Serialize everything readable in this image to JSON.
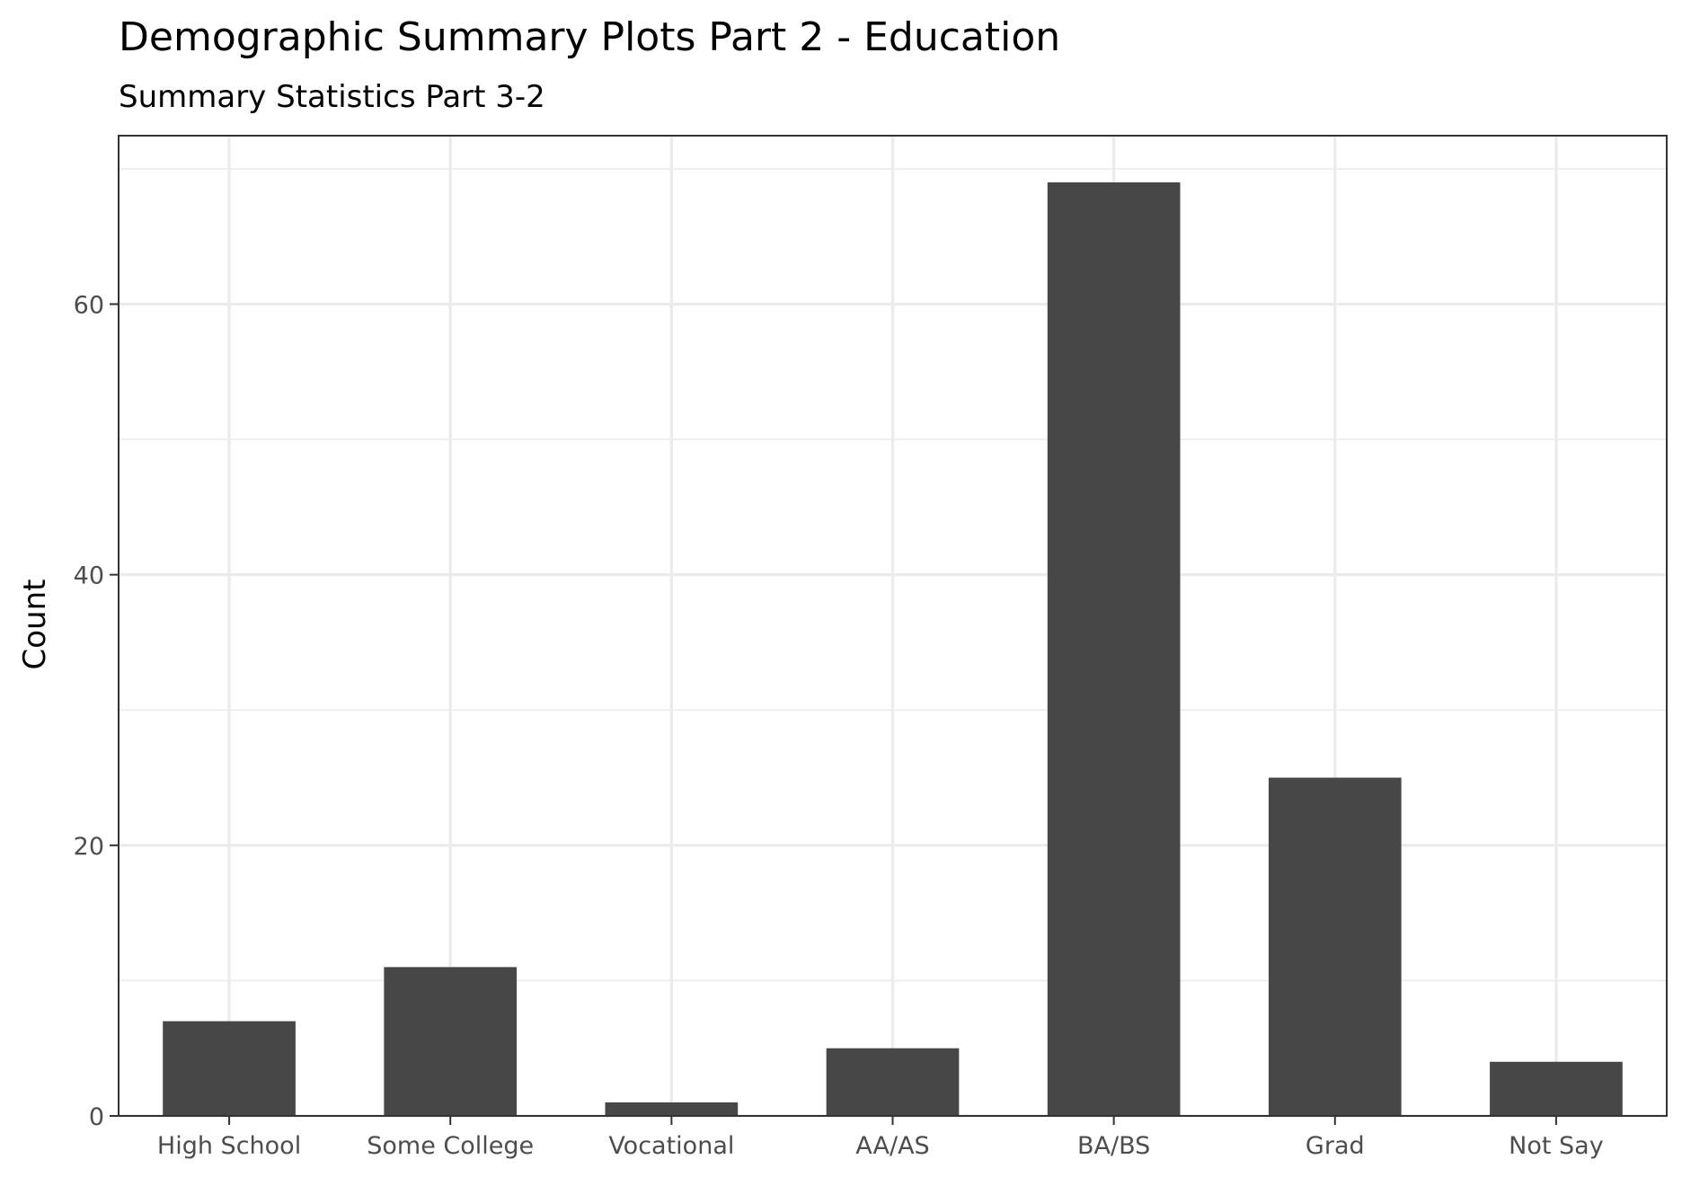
{
  "chart_data": {
    "type": "bar",
    "title": "Demographic Summary Plots Part 2 - Education",
    "subtitle": "Summary Statistics Part 3-2",
    "xlabel": "",
    "ylabel": "Count",
    "categories": [
      "High School",
      "Some College",
      "Vocational",
      "AA/AS",
      "BA/BS",
      "Grad",
      "Not Say"
    ],
    "values": [
      7,
      11,
      1,
      5,
      69,
      25,
      4
    ],
    "ylim": [
      0,
      72.45
    ],
    "y_ticks": [
      0,
      20,
      40,
      60
    ],
    "y_minor_ticks": [
      10,
      30,
      50,
      70
    ],
    "grid": true,
    "legend": "none",
    "colors": {
      "bar": "#474747",
      "grid": "#ebebeb",
      "panel_border": "#333333",
      "tick_text": "#4d4d4d",
      "tick_mark": "#333333"
    }
  }
}
